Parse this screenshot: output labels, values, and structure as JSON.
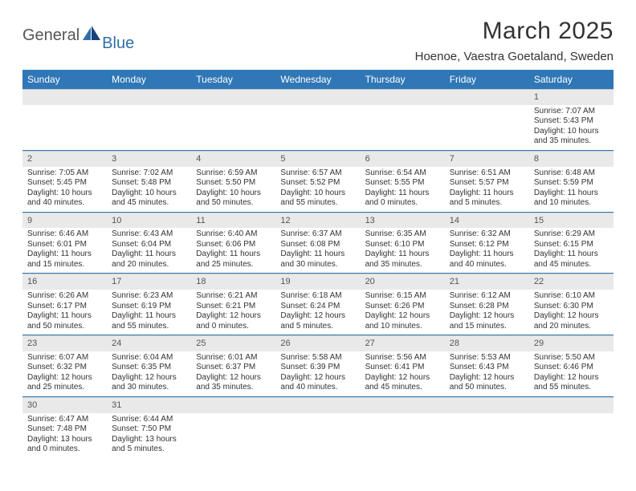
{
  "logo": {
    "text1": "General",
    "text2": "Blue",
    "accent_color": "#2f6fa8"
  },
  "title": "March 2025",
  "location": "Hoenoe, Vaestra Goetaland, Sweden",
  "colors": {
    "header_bg": "#2f77b6",
    "header_text": "#ffffff",
    "daynum_bg": "#e9e9e9",
    "rule": "#2f77b6"
  },
  "weekdays": [
    "Sunday",
    "Monday",
    "Tuesday",
    "Wednesday",
    "Thursday",
    "Friday",
    "Saturday"
  ],
  "weeks": [
    [
      null,
      null,
      null,
      null,
      null,
      null,
      {
        "n": "1",
        "sunrise": "Sunrise: 7:07 AM",
        "sunset": "Sunset: 5:43 PM",
        "day1": "Daylight: 10 hours",
        "day2": "and 35 minutes."
      }
    ],
    [
      {
        "n": "2",
        "sunrise": "Sunrise: 7:05 AM",
        "sunset": "Sunset: 5:45 PM",
        "day1": "Daylight: 10 hours",
        "day2": "and 40 minutes."
      },
      {
        "n": "3",
        "sunrise": "Sunrise: 7:02 AM",
        "sunset": "Sunset: 5:48 PM",
        "day1": "Daylight: 10 hours",
        "day2": "and 45 minutes."
      },
      {
        "n": "4",
        "sunrise": "Sunrise: 6:59 AM",
        "sunset": "Sunset: 5:50 PM",
        "day1": "Daylight: 10 hours",
        "day2": "and 50 minutes."
      },
      {
        "n": "5",
        "sunrise": "Sunrise: 6:57 AM",
        "sunset": "Sunset: 5:52 PM",
        "day1": "Daylight: 10 hours",
        "day2": "and 55 minutes."
      },
      {
        "n": "6",
        "sunrise": "Sunrise: 6:54 AM",
        "sunset": "Sunset: 5:55 PM",
        "day1": "Daylight: 11 hours",
        "day2": "and 0 minutes."
      },
      {
        "n": "7",
        "sunrise": "Sunrise: 6:51 AM",
        "sunset": "Sunset: 5:57 PM",
        "day1": "Daylight: 11 hours",
        "day2": "and 5 minutes."
      },
      {
        "n": "8",
        "sunrise": "Sunrise: 6:48 AM",
        "sunset": "Sunset: 5:59 PM",
        "day1": "Daylight: 11 hours",
        "day2": "and 10 minutes."
      }
    ],
    [
      {
        "n": "9",
        "sunrise": "Sunrise: 6:46 AM",
        "sunset": "Sunset: 6:01 PM",
        "day1": "Daylight: 11 hours",
        "day2": "and 15 minutes."
      },
      {
        "n": "10",
        "sunrise": "Sunrise: 6:43 AM",
        "sunset": "Sunset: 6:04 PM",
        "day1": "Daylight: 11 hours",
        "day2": "and 20 minutes."
      },
      {
        "n": "11",
        "sunrise": "Sunrise: 6:40 AM",
        "sunset": "Sunset: 6:06 PM",
        "day1": "Daylight: 11 hours",
        "day2": "and 25 minutes."
      },
      {
        "n": "12",
        "sunrise": "Sunrise: 6:37 AM",
        "sunset": "Sunset: 6:08 PM",
        "day1": "Daylight: 11 hours",
        "day2": "and 30 minutes."
      },
      {
        "n": "13",
        "sunrise": "Sunrise: 6:35 AM",
        "sunset": "Sunset: 6:10 PM",
        "day1": "Daylight: 11 hours",
        "day2": "and 35 minutes."
      },
      {
        "n": "14",
        "sunrise": "Sunrise: 6:32 AM",
        "sunset": "Sunset: 6:12 PM",
        "day1": "Daylight: 11 hours",
        "day2": "and 40 minutes."
      },
      {
        "n": "15",
        "sunrise": "Sunrise: 6:29 AM",
        "sunset": "Sunset: 6:15 PM",
        "day1": "Daylight: 11 hours",
        "day2": "and 45 minutes."
      }
    ],
    [
      {
        "n": "16",
        "sunrise": "Sunrise: 6:26 AM",
        "sunset": "Sunset: 6:17 PM",
        "day1": "Daylight: 11 hours",
        "day2": "and 50 minutes."
      },
      {
        "n": "17",
        "sunrise": "Sunrise: 6:23 AM",
        "sunset": "Sunset: 6:19 PM",
        "day1": "Daylight: 11 hours",
        "day2": "and 55 minutes."
      },
      {
        "n": "18",
        "sunrise": "Sunrise: 6:21 AM",
        "sunset": "Sunset: 6:21 PM",
        "day1": "Daylight: 12 hours",
        "day2": "and 0 minutes."
      },
      {
        "n": "19",
        "sunrise": "Sunrise: 6:18 AM",
        "sunset": "Sunset: 6:24 PM",
        "day1": "Daylight: 12 hours",
        "day2": "and 5 minutes."
      },
      {
        "n": "20",
        "sunrise": "Sunrise: 6:15 AM",
        "sunset": "Sunset: 6:26 PM",
        "day1": "Daylight: 12 hours",
        "day2": "and 10 minutes."
      },
      {
        "n": "21",
        "sunrise": "Sunrise: 6:12 AM",
        "sunset": "Sunset: 6:28 PM",
        "day1": "Daylight: 12 hours",
        "day2": "and 15 minutes."
      },
      {
        "n": "22",
        "sunrise": "Sunrise: 6:10 AM",
        "sunset": "Sunset: 6:30 PM",
        "day1": "Daylight: 12 hours",
        "day2": "and 20 minutes."
      }
    ],
    [
      {
        "n": "23",
        "sunrise": "Sunrise: 6:07 AM",
        "sunset": "Sunset: 6:32 PM",
        "day1": "Daylight: 12 hours",
        "day2": "and 25 minutes."
      },
      {
        "n": "24",
        "sunrise": "Sunrise: 6:04 AM",
        "sunset": "Sunset: 6:35 PM",
        "day1": "Daylight: 12 hours",
        "day2": "and 30 minutes."
      },
      {
        "n": "25",
        "sunrise": "Sunrise: 6:01 AM",
        "sunset": "Sunset: 6:37 PM",
        "day1": "Daylight: 12 hours",
        "day2": "and 35 minutes."
      },
      {
        "n": "26",
        "sunrise": "Sunrise: 5:58 AM",
        "sunset": "Sunset: 6:39 PM",
        "day1": "Daylight: 12 hours",
        "day2": "and 40 minutes."
      },
      {
        "n": "27",
        "sunrise": "Sunrise: 5:56 AM",
        "sunset": "Sunset: 6:41 PM",
        "day1": "Daylight: 12 hours",
        "day2": "and 45 minutes."
      },
      {
        "n": "28",
        "sunrise": "Sunrise: 5:53 AM",
        "sunset": "Sunset: 6:43 PM",
        "day1": "Daylight: 12 hours",
        "day2": "and 50 minutes."
      },
      {
        "n": "29",
        "sunrise": "Sunrise: 5:50 AM",
        "sunset": "Sunset: 6:46 PM",
        "day1": "Daylight: 12 hours",
        "day2": "and 55 minutes."
      }
    ],
    [
      {
        "n": "30",
        "sunrise": "Sunrise: 6:47 AM",
        "sunset": "Sunset: 7:48 PM",
        "day1": "Daylight: 13 hours",
        "day2": "and 0 minutes."
      },
      {
        "n": "31",
        "sunrise": "Sunrise: 6:44 AM",
        "sunset": "Sunset: 7:50 PM",
        "day1": "Daylight: 13 hours",
        "day2": "and 5 minutes."
      },
      null,
      null,
      null,
      null,
      null
    ]
  ]
}
